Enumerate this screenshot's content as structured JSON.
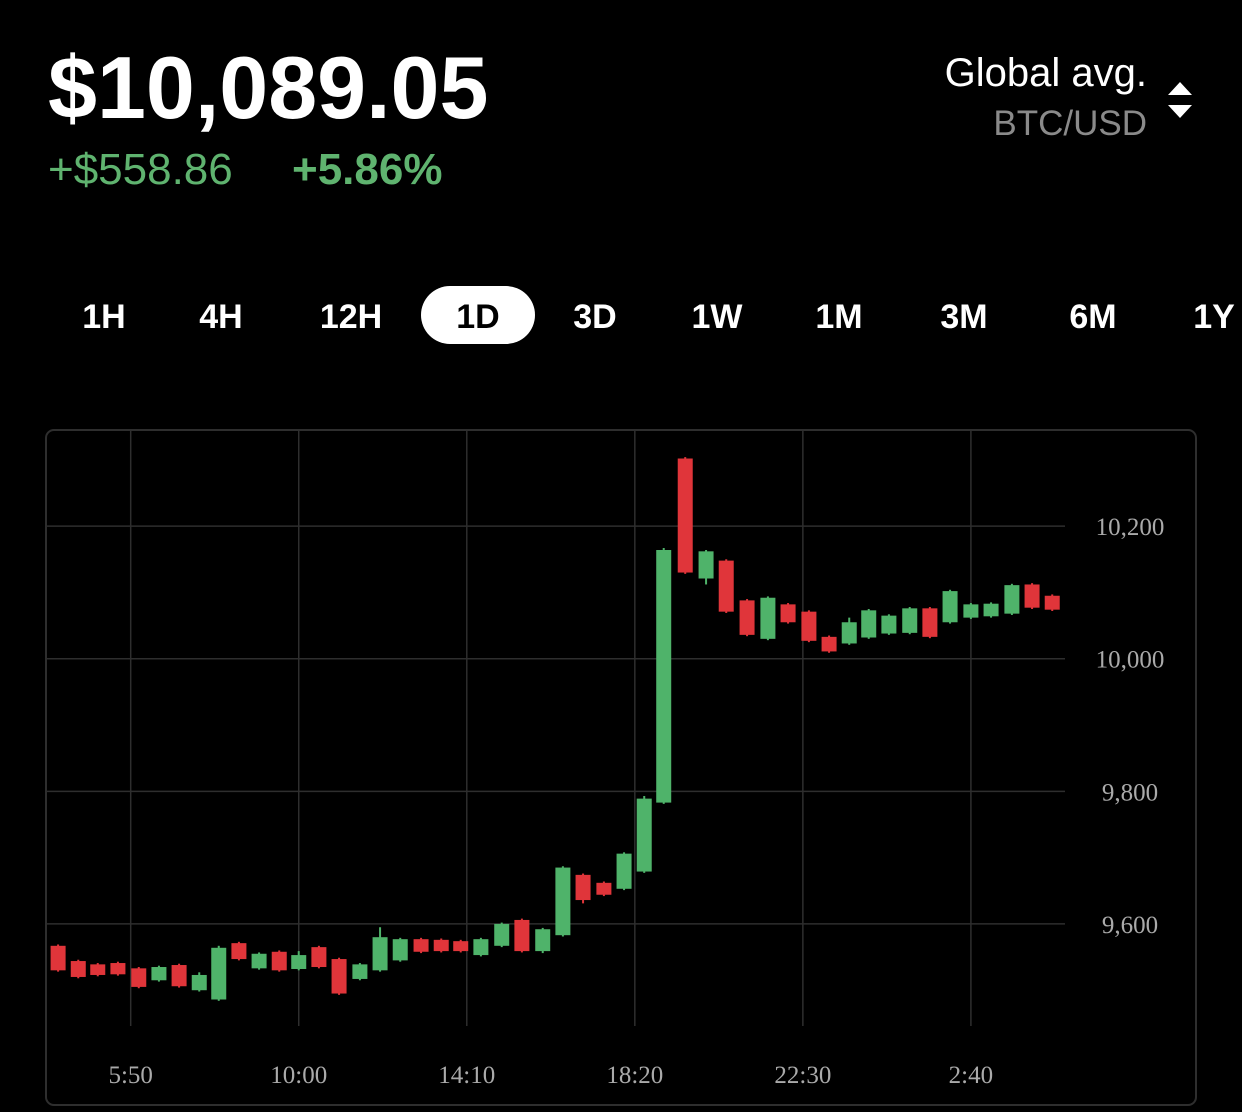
{
  "header": {
    "price": "$10,089.05",
    "change": "+$558.86",
    "change_pct": "+5.86%",
    "source": "Global avg.",
    "pair": "BTC/USD"
  },
  "tabs": {
    "items": [
      "1H",
      "4H",
      "12H",
      "1D",
      "3D",
      "1W",
      "1M",
      "3M",
      "6M",
      "1Y"
    ],
    "selected": 3
  },
  "chart_data": {
    "type": "candlestick",
    "x": [
      -108,
      -78,
      -49,
      -19,
      12,
      42,
      72,
      102,
      131,
      161,
      191,
      221,
      250,
      280,
      310,
      341,
      371,
      401,
      432,
      462,
      491,
      521,
      552,
      582,
      613,
      643,
      673,
      704,
      734,
      764,
      793,
      825,
      856,
      886,
      917,
      948,
      978,
      1009,
      1039,
      1069,
      1098,
      1128,
      1159,
      1189,
      1219,
      1250,
      1280,
      1311,
      1341,
      1371
    ],
    "open": [
      9567,
      9544,
      9539,
      9541,
      9533,
      9515,
      9538,
      9500,
      9486,
      9571,
      9533,
      9558,
      9532,
      9565,
      9547,
      9517,
      9530,
      9545,
      9577,
      9576,
      9574,
      9553,
      9567,
      9606,
      9559,
      9583,
      9674,
      9662,
      9653,
      9679,
      9783,
      10302,
      10121,
      10148,
      10088,
      10030,
      10082,
      10071,
      10033,
      10023,
      10032,
      10038,
      10039,
      10076,
      10055,
      10062,
      10064,
      10068,
      10112,
      10095
    ],
    "high": [
      9569,
      9546,
      9541,
      9543,
      9535,
      9537,
      9540,
      9527,
      9567,
      9573,
      9557,
      9560,
      9559,
      9567,
      9549,
      9541,
      9595,
      9579,
      9579,
      9578,
      9576,
      9579,
      9602,
      9608,
      9594,
      9687,
      9676,
      9664,
      9708,
      9793,
      10167,
      10304,
      10164,
      10150,
      10090,
      10094,
      10084,
      10073,
      10035,
      10062,
      10075,
      10067,
      10078,
      10078,
      10104,
      10084,
      10085,
      10113,
      10114,
      10097
    ],
    "low": [
      9528,
      9518,
      9521,
      9522,
      9503,
      9513,
      9504,
      9498,
      9484,
      9545,
      9531,
      9528,
      9530,
      9533,
      9493,
      9515,
      9528,
      9543,
      9556,
      9557,
      9557,
      9551,
      9565,
      9557,
      9556,
      9581,
      9631,
      9642,
      9651,
      9677,
      9781,
      10128,
      10112,
      10069,
      10034,
      10028,
      10053,
      10025,
      10009,
      10021,
      10030,
      10036,
      10037,
      10031,
      10053,
      10060,
      10062,
      10066,
      10075,
      10072
    ],
    "close": [
      9530,
      9520,
      9523,
      9524,
      9505,
      9535,
      9506,
      9523,
      9564,
      9547,
      9555,
      9530,
      9553,
      9535,
      9495,
      9539,
      9580,
      9577,
      9558,
      9559,
      9559,
      9577,
      9600,
      9559,
      9592,
      9685,
      9636,
      9644,
      9706,
      9789,
      10164,
      10130,
      10162,
      10071,
      10036,
      10092,
      10055,
      10027,
      10011,
      10055,
      10073,
      10065,
      10076,
      10033,
      10102,
      10082,
      10083,
      10111,
      10077,
      10074
    ],
    "up_color": "#4fb36a",
    "down_color": "#e0353a",
    "xlim": [
      -126,
      1390
    ],
    "xticks": [
      {
        "value": 0,
        "label": "5:50"
      },
      {
        "value": 250,
        "label": "10:00"
      },
      {
        "value": 500,
        "label": "14:10"
      },
      {
        "value": 750,
        "label": "18:20"
      },
      {
        "value": 1000,
        "label": "22:30"
      },
      {
        "value": 1250,
        "label": "2:40"
      }
    ],
    "ylim": [
      9440,
      10345
    ],
    "yticks": [
      {
        "value": 9600,
        "label": "9,600"
      },
      {
        "value": 9800,
        "label": "9,800"
      },
      {
        "value": 10000,
        "label": "10,000"
      },
      {
        "value": 10200,
        "label": "10,200"
      }
    ],
    "grid": true
  }
}
